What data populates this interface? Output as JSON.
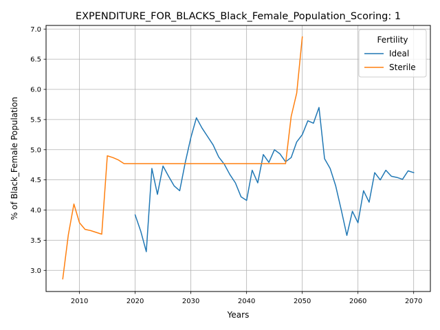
{
  "chart_data": {
    "type": "line",
    "title": "EXPENDITURE_FOR_BLACKS_Black_Female_Population_Scoring: 1",
    "xlabel": "Years",
    "ylabel": "% of Black_Female Population",
    "xlim": [
      2004,
      2073
    ],
    "ylim": [
      2.65,
      7.06
    ],
    "xticks": [
      2010,
      2020,
      2030,
      2040,
      2050,
      2060,
      2070
    ],
    "yticks": [
      3.0,
      3.5,
      4.0,
      4.5,
      5.0,
      5.5,
      6.0,
      6.5,
      7.0
    ],
    "ytick_labels": [
      "3.0",
      "3.5",
      "4.0",
      "4.5",
      "5.0",
      "5.5",
      "6.0",
      "6.5",
      "7.0"
    ],
    "grid": true,
    "legend": {
      "title": "Fertility",
      "placement": "top-right"
    },
    "series": [
      {
        "name": "Ideal",
        "color": "#1f77b4",
        "x": [
          2020,
          2021,
          2022,
          2023,
          2024,
          2025,
          2026,
          2027,
          2028,
          2029,
          2030,
          2031,
          2032,
          2033,
          2034,
          2035,
          2036,
          2037,
          2038,
          2039,
          2040,
          2041,
          2042,
          2043,
          2044,
          2045,
          2046,
          2047,
          2048,
          2049,
          2050,
          2051,
          2052,
          2053,
          2054,
          2055,
          2056,
          2057,
          2058,
          2059,
          2060,
          2061,
          2062,
          2063,
          2064,
          2065,
          2066,
          2067,
          2068,
          2069,
          2070
        ],
        "y": [
          3.92,
          3.65,
          3.31,
          4.69,
          4.26,
          4.73,
          4.56,
          4.4,
          4.32,
          4.79,
          5.2,
          5.53,
          5.36,
          5.22,
          5.08,
          4.88,
          4.76,
          4.59,
          4.45,
          4.22,
          4.16,
          4.66,
          4.45,
          4.92,
          4.79,
          5.0,
          4.93,
          4.8,
          4.87,
          5.13,
          5.25,
          5.48,
          5.44,
          5.7,
          4.85,
          4.69,
          4.4,
          4.0,
          3.58,
          3.98,
          3.79,
          4.32,
          4.13,
          4.62,
          4.5,
          4.66,
          4.56,
          4.54,
          4.51,
          4.65,
          4.62
        ]
      },
      {
        "name": "Sterile",
        "color": "#ff7f0e",
        "x": [
          2007,
          2008,
          2009,
          2010,
          2011,
          2012,
          2013,
          2014,
          2015,
          2016,
          2017,
          2018,
          2019,
          2020,
          2025,
          2030,
          2035,
          2040,
          2045,
          2046,
          2047,
          2048,
          2049,
          2050
        ],
        "y": [
          2.86,
          3.59,
          4.1,
          3.79,
          3.68,
          3.66,
          3.63,
          3.6,
          4.9,
          4.87,
          4.83,
          4.77,
          4.77,
          4.77,
          4.77,
          4.77,
          4.77,
          4.77,
          4.77,
          4.77,
          4.77,
          5.55,
          5.94,
          6.87
        ]
      }
    ]
  }
}
